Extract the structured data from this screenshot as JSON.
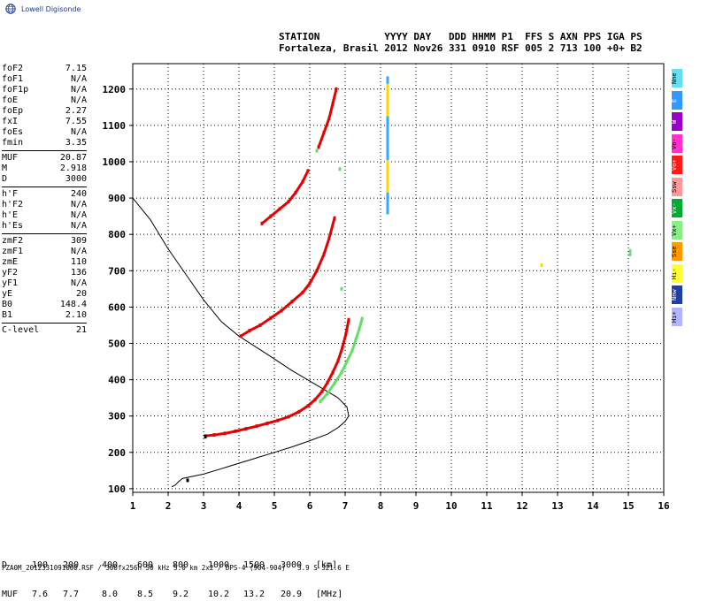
{
  "logo": {
    "text": "Lowell Digisonde",
    "icon": "globe-icon"
  },
  "header": {
    "line1": "STATION           YYYY DAY   DDD HHMM P1  FFS S AXN PPS IGA PS",
    "line2": "Fortaleza, Brasil 2012 Nov26 331 0910 RSF 005 2 713 100 +0+ B2"
  },
  "params": [
    [
      {
        "k": "foF2",
        "v": "7.15"
      },
      {
        "k": "foF1",
        "v": "N/A"
      },
      {
        "k": "foF1p",
        "v": "N/A"
      },
      {
        "k": "foE",
        "v": "N/A"
      },
      {
        "k": "foEp",
        "v": "2.27"
      },
      {
        "k": "fxI",
        "v": "7.55"
      },
      {
        "k": "foEs",
        "v": "N/A"
      },
      {
        "k": "fmin",
        "v": "3.35"
      }
    ],
    [
      {
        "k": "MUF",
        "v": "20.87"
      },
      {
        "k": "M",
        "v": "2.918"
      },
      {
        "k": "D",
        "v": "3000"
      }
    ],
    [
      {
        "k": "h'F",
        "v": "240"
      },
      {
        "k": "h'F2",
        "v": "N/A"
      },
      {
        "k": "h'E",
        "v": "N/A"
      },
      {
        "k": "h'Es",
        "v": "N/A"
      }
    ],
    [
      {
        "k": "zmF2",
        "v": "309"
      },
      {
        "k": "zmF1",
        "v": "N/A"
      },
      {
        "k": "zmE",
        "v": "110"
      },
      {
        "k": "yF2",
        "v": "136"
      },
      {
        "k": "yF1",
        "v": "N/A"
      },
      {
        "k": "yE",
        "v": "20"
      },
      {
        "k": "B0",
        "v": "148.4"
      },
      {
        "k": "B1",
        "v": "2.10"
      }
    ],
    [
      {
        "k": "C-level",
        "v": "21"
      }
    ]
  ],
  "legend": [
    {
      "label": "Nne",
      "color": "#66e0f0"
    },
    {
      "label": "E",
      "color": "#3399ff"
    },
    {
      "label": "W",
      "color": "#9900cc"
    },
    {
      "label": "Vo-",
      "color": "#ff33cc"
    },
    {
      "label": "Vo+",
      "color": "#ff1a1a"
    },
    {
      "label": "Ssw",
      "color": "#ff9999"
    },
    {
      "label": "Vx-",
      "color": "#00aa33"
    },
    {
      "label": "Vx+",
      "color": "#88ee88"
    },
    {
      "label": "Sse",
      "color": "#ff9900"
    },
    {
      "label": "Hi-",
      "color": "#ffff33"
    },
    {
      "label": "Nnw",
      "color": "#1f3fa6"
    },
    {
      "label": "Hi+",
      "color": "#b3b3ff"
    }
  ],
  "bottom": {
    "d_label": "D",
    "d_values": [
      "100",
      "200",
      "400",
      "600",
      "800",
      "1000",
      "1500",
      "3000",
      "[km]"
    ],
    "muf_label": "MUF",
    "muf_values": [
      "7.6",
      "7.7",
      "8.0",
      "8.5",
      "9.2",
      "10.2",
      "13.2",
      "20.9",
      "[MHz]"
    ]
  },
  "footer": "FZA0M_2012331091000.RSF / 300fx256h 50 kHz 5.0 km 2x2 / DPS-4 (904-904)   3.9 S 321.6 E",
  "chart_data": {
    "type": "scatter",
    "title": "",
    "xlabel": "",
    "ylabel": "",
    "xlim": [
      1,
      16
    ],
    "ylim": [
      90,
      1270
    ],
    "xticks": [
      1,
      2,
      3,
      4,
      5,
      6,
      7,
      8,
      9,
      10,
      11,
      12,
      13,
      14,
      15,
      16
    ],
    "yticks": [
      100,
      200,
      300,
      400,
      500,
      600,
      700,
      800,
      900,
      1000,
      1100,
      1200
    ],
    "grid": true,
    "series": [
      {
        "color": "#e60000",
        "values": [
          [
            3.05,
            245
          ],
          [
            3.3,
            248
          ],
          [
            3.6,
            252
          ],
          [
            3.9,
            258
          ],
          [
            4.2,
            265
          ],
          [
            4.5,
            272
          ],
          [
            4.8,
            280
          ],
          [
            5.1,
            288
          ],
          [
            5.4,
            298
          ],
          [
            5.7,
            312
          ],
          [
            5.95,
            328
          ],
          [
            6.15,
            345
          ],
          [
            6.35,
            368
          ],
          [
            6.5,
            392
          ],
          [
            6.65,
            420
          ],
          [
            6.8,
            452
          ],
          [
            6.92,
            488
          ],
          [
            7.02,
            525
          ],
          [
            7.1,
            565
          ]
        ]
      },
      {
        "color": "#66dd66",
        "values": [
          [
            6.3,
            340
          ],
          [
            6.5,
            362
          ],
          [
            6.7,
            390
          ],
          [
            6.9,
            420
          ],
          [
            7.05,
            450
          ],
          [
            7.2,
            480
          ],
          [
            7.3,
            510
          ],
          [
            7.4,
            540
          ],
          [
            7.48,
            568
          ]
        ]
      },
      {
        "color": "#e60000",
        "values": [
          [
            4.05,
            520
          ],
          [
            4.3,
            535
          ],
          [
            4.6,
            550
          ],
          [
            4.9,
            570
          ],
          [
            5.2,
            590
          ],
          [
            5.5,
            615
          ],
          [
            5.8,
            640
          ],
          [
            6.0,
            665
          ],
          [
            6.2,
            700
          ],
          [
            6.4,
            745
          ],
          [
            6.55,
            790
          ],
          [
            6.7,
            845
          ]
        ]
      },
      {
        "color": "#e60000",
        "values": [
          [
            4.65,
            830
          ],
          [
            4.9,
            850
          ],
          [
            5.15,
            870
          ],
          [
            5.4,
            890
          ],
          [
            5.6,
            915
          ],
          [
            5.8,
            945
          ],
          [
            5.95,
            975
          ]
        ]
      },
      {
        "color": "#e60000",
        "values": [
          [
            6.25,
            1040
          ],
          [
            6.4,
            1080
          ],
          [
            6.55,
            1120
          ],
          [
            6.65,
            1160
          ],
          [
            6.75,
            1200
          ]
        ]
      },
      {
        "color": "#66dd66",
        "values": [
          [
            6.2,
            1030
          ],
          [
            6.9,
            650
          ],
          [
            6.85,
            980
          ]
        ]
      },
      {
        "color": "#33aaff",
        "values": [
          [
            8.2,
            1230
          ],
          [
            8.2,
            1200
          ],
          [
            8.2,
            1170
          ],
          [
            8.2,
            1140
          ],
          [
            8.2,
            1100
          ],
          [
            8.2,
            1060
          ],
          [
            8.2,
            1020
          ],
          [
            8.2,
            980
          ],
          [
            8.2,
            940
          ],
          [
            8.2,
            900
          ],
          [
            8.2,
            860
          ]
        ]
      },
      {
        "color": "#ffd700",
        "values": [
          [
            8.2,
            1210
          ],
          [
            8.2,
            1130
          ],
          [
            8.2,
            1000
          ],
          [
            8.2,
            920
          ],
          [
            12.55,
            715
          ]
        ]
      },
      {
        "color": "#7ad87a",
        "values": [
          [
            15.05,
            755
          ],
          [
            15.05,
            745
          ]
        ]
      },
      {
        "color": "#000000",
        "values": [
          [
            3.05,
            243
          ],
          [
            2.55,
            123
          ]
        ]
      }
    ],
    "profile": [
      [
        2.1,
        105
      ],
      [
        2.2,
        110
      ],
      [
        2.3,
        120
      ],
      [
        2.4,
        128
      ],
      [
        3.0,
        140
      ],
      [
        3.5,
        155
      ],
      [
        4.0,
        170
      ],
      [
        4.5,
        185
      ],
      [
        5.0,
        200
      ],
      [
        5.5,
        215
      ],
      [
        6.0,
        232
      ],
      [
        6.5,
        250
      ],
      [
        6.8,
        268
      ],
      [
        7.0,
        285
      ],
      [
        7.1,
        300
      ],
      [
        7.05,
        325
      ],
      [
        6.8,
        350
      ],
      [
        6.2,
        385
      ],
      [
        5.5,
        425
      ],
      [
        4.8,
        470
      ],
      [
        4.0,
        520
      ],
      [
        3.5,
        560
      ],
      [
        3.0,
        620
      ],
      [
        2.5,
        690
      ],
      [
        2.0,
        760
      ],
      [
        1.5,
        840
      ],
      [
        1.0,
        900
      ]
    ]
  }
}
